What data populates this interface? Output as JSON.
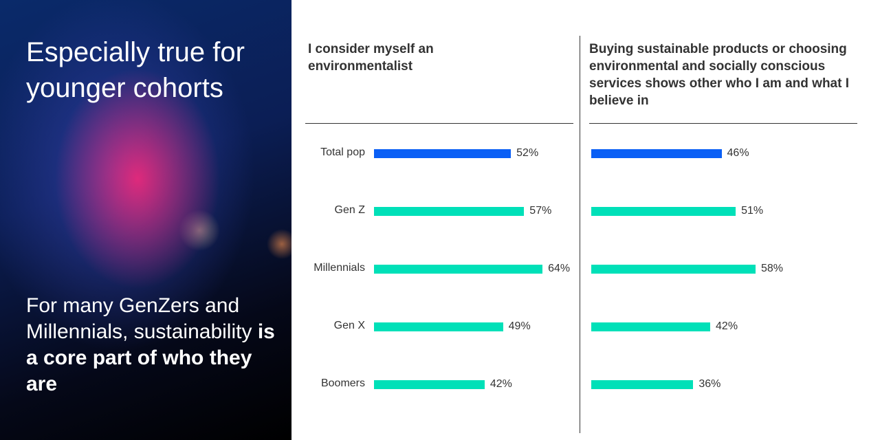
{
  "photo": {
    "title": "Especially true for younger cohorts",
    "sub_plain": "For many GenZers and Millennials, sustainability ",
    "sub_bold": "is a core part of who they are"
  },
  "colors": {
    "total": "#0a5ff5",
    "cohort": "#00e0b8"
  },
  "chart_data": [
    {
      "type": "bar",
      "orientation": "horizontal",
      "title": "I consider myself an environmentalist",
      "categories": [
        "Total pop",
        "Gen Z",
        "Millennials",
        "Gen X",
        "Boomers"
      ],
      "values": [
        52,
        57,
        64,
        49,
        42
      ],
      "labels": [
        "52%",
        "57%",
        "64%",
        "49%",
        "42%"
      ]
    },
    {
      "type": "bar",
      "orientation": "horizontal",
      "title": "Buying sustainable products or choosing environmental and socially conscious services shows other who I am and what I believe in",
      "categories": [
        "Total pop",
        "Gen Z",
        "Millennials",
        "Gen X",
        "Boomers"
      ],
      "values": [
        46,
        51,
        58,
        42,
        36
      ],
      "labels": [
        "46%",
        "51%",
        "58%",
        "42%",
        "36%"
      ]
    }
  ]
}
